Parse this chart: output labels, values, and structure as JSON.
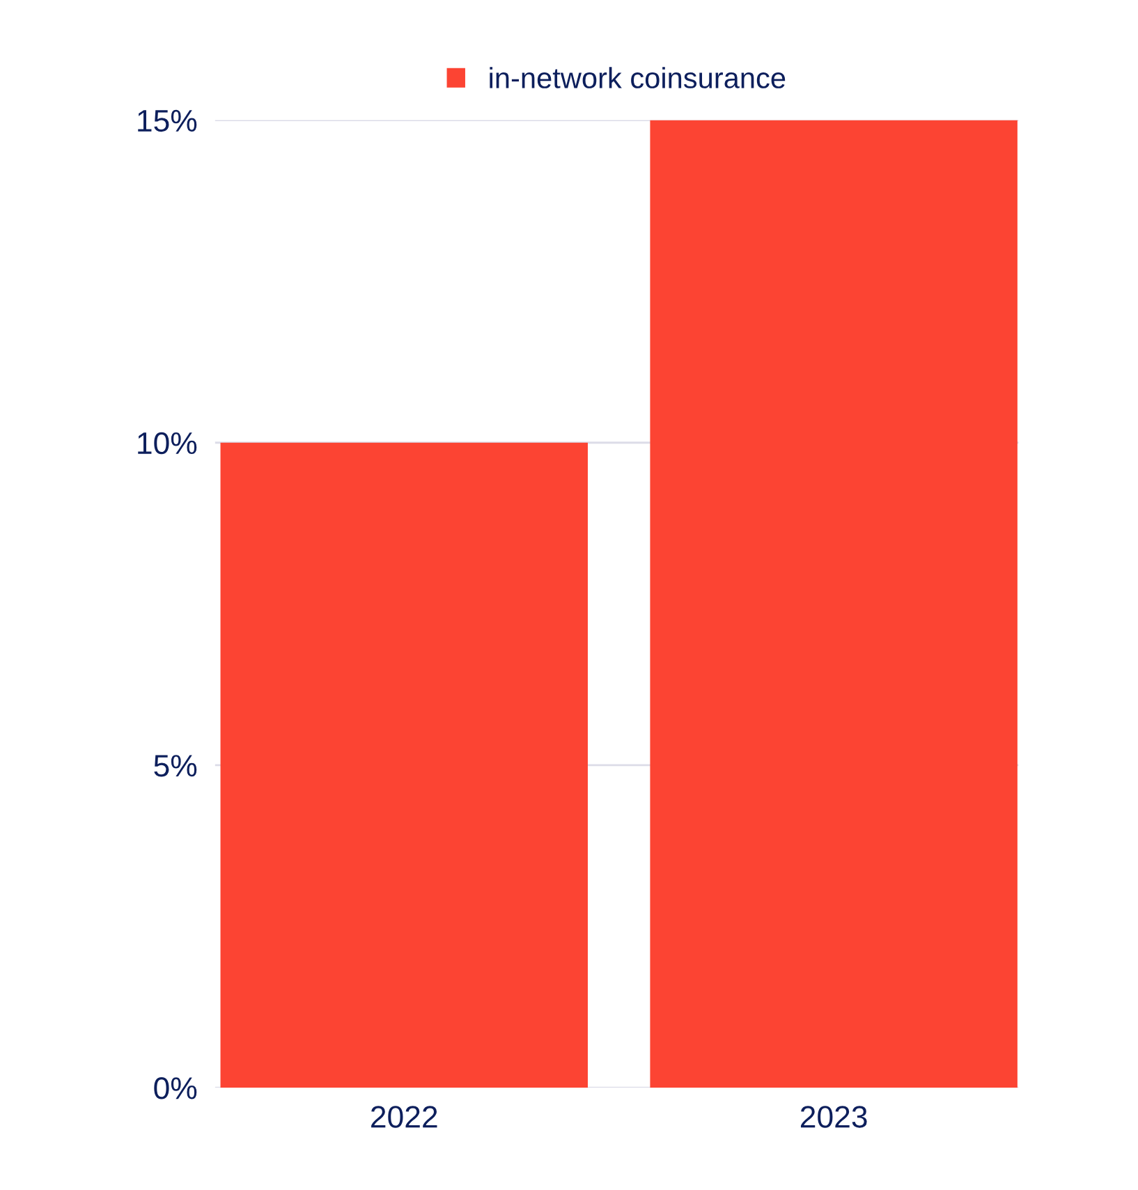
{
  "chart_data": {
    "type": "bar",
    "categories": [
      "2022",
      "2023"
    ],
    "series": [
      {
        "name": "in-network coinsurance",
        "color": "#fc4433",
        "values": [
          10,
          15
        ]
      }
    ],
    "ylim": [
      0,
      15
    ],
    "yticks": [
      {
        "value": 0,
        "label": "0%"
      },
      {
        "value": 5,
        "label": "5%"
      },
      {
        "value": 10,
        "label": "10%"
      },
      {
        "value": 15,
        "label": "15%"
      }
    ],
    "grid": "y",
    "legend": "top"
  }
}
